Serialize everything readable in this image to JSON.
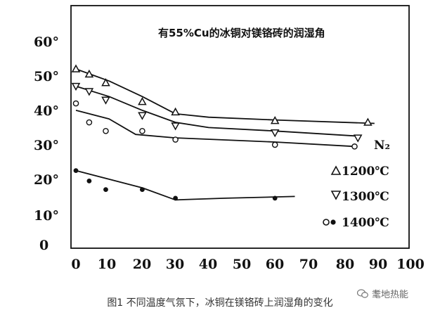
{
  "chart_data": {
    "type": "scatter",
    "title": "有55%Cu的冰铜对镁铬砖的润湿角",
    "xlabel": "",
    "ylabel": "",
    "xlim": [
      0,
      100
    ],
    "ylim": [
      0,
      65
    ],
    "x_ticks": [
      "0",
      "10",
      "20",
      "30",
      "40",
      "50",
      "60",
      "70",
      "80",
      "90",
      "100"
    ],
    "y_ticks": [
      "0",
      "10°",
      "20°",
      "30°",
      "40°",
      "50°",
      "60°"
    ],
    "legend_atmosphere": "N₂",
    "legend": [
      {
        "label": "1200℃",
        "markers": "△"
      },
      {
        "label": "1300℃",
        "markers": "▽"
      },
      {
        "label": "1400℃",
        "markers": "○●"
      }
    ],
    "series": [
      {
        "name": "1200℃",
        "marker": "triangle-up",
        "points": [
          [
            0,
            51
          ],
          [
            4,
            49.5
          ],
          [
            9,
            47
          ],
          [
            20,
            41.5
          ],
          [
            30,
            38.5
          ],
          [
            60,
            36
          ],
          [
            88,
            35.5
          ]
        ],
        "fit": [
          [
            0,
            51
          ],
          [
            10,
            47.5
          ],
          [
            20,
            43
          ],
          [
            30,
            38
          ],
          [
            40,
            37
          ],
          [
            60,
            36.2
          ],
          [
            90,
            35.2
          ]
        ]
      },
      {
        "name": "1300℃",
        "marker": "triangle-down",
        "points": [
          [
            0,
            46
          ],
          [
            4,
            44.5
          ],
          [
            9,
            42
          ],
          [
            20,
            37.5
          ],
          [
            30,
            34.5
          ],
          [
            60,
            32.5
          ],
          [
            85,
            31
          ]
        ],
        "fit": [
          [
            0,
            46
          ],
          [
            10,
            43
          ],
          [
            20,
            39
          ],
          [
            30,
            35.5
          ],
          [
            40,
            34
          ],
          [
            60,
            33
          ],
          [
            85,
            31.5
          ]
        ]
      },
      {
        "name": "1400℃",
        "marker": "circle-open",
        "points": [
          [
            0,
            41
          ],
          [
            4,
            35.5
          ],
          [
            9,
            33
          ],
          [
            20,
            33
          ],
          [
            30,
            30.5
          ],
          [
            60,
            29
          ],
          [
            84,
            28.5
          ]
        ],
        "fit": [
          [
            0,
            39
          ],
          [
            10,
            36.5
          ],
          [
            18,
            32
          ],
          [
            30,
            31
          ],
          [
            60,
            29.8
          ],
          [
            84,
            28.5
          ]
        ]
      },
      {
        "name": "1400℃",
        "marker": "circle-filled",
        "points": [
          [
            0,
            21.5
          ],
          [
            4,
            18.5
          ],
          [
            9,
            16
          ],
          [
            20,
            16
          ],
          [
            30,
            13.5
          ],
          [
            60,
            13.5
          ]
        ],
        "fit": [
          [
            0,
            21.5
          ],
          [
            10,
            19
          ],
          [
            20,
            16.5
          ],
          [
            30,
            13
          ],
          [
            45,
            13.5
          ],
          [
            66,
            14
          ]
        ]
      }
    ]
  },
  "caption": "图1 不同温度气氛下，冰铜在镁铬砖上润湿角的变化",
  "watermark": "耄地热能"
}
